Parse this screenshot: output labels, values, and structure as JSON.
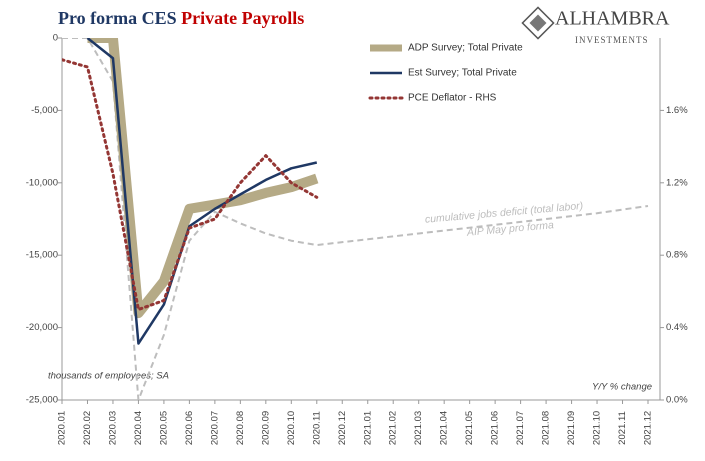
{
  "chart_data": {
    "type": "line",
    "title": {
      "part1": "Pro forma CES",
      "part2": "Private Payrolls"
    },
    "logo": {
      "name": "ALHAMBRA",
      "sub": "INVESTMENTS"
    },
    "y_note": "thousands of employees; SA",
    "y2_note": "Y/Y % change",
    "annotations": [
      "cumulative jobs deficit (total labor)",
      "AIP May pro forma"
    ],
    "categories": [
      "2020.01",
      "2020.02",
      "2020.03",
      "2020.04",
      "2020.05",
      "2020.06",
      "2020.07",
      "2020.08",
      "2020.09",
      "2020.10",
      "2020.11",
      "2020.12",
      "2021.01",
      "2021.02",
      "2021.03",
      "2021.04",
      "2021.05",
      "2021.06",
      "2021.07",
      "2021.08",
      "2021.09",
      "2021.10",
      "2021.11",
      "2021.12"
    ],
    "ylim": [
      -25000,
      0
    ],
    "yticks": [
      {
        "value": -25000,
        "label": "-25,000"
      },
      {
        "value": -20000,
        "label": "-20,000"
      },
      {
        "value": -15000,
        "label": "-15,000"
      },
      {
        "value": -10000,
        "label": "-10,000"
      },
      {
        "value": -5000,
        "label": "-5,000"
      },
      0
    ],
    "y2lim": [
      0,
      2.0
    ],
    "y2ticks": [
      {
        "value": 0,
        "label": "0.0%"
      },
      {
        "value": 0.4,
        "label": "0.4%"
      },
      {
        "value": 0.8,
        "label": "0.8%"
      },
      {
        "value": 1.2,
        "label": "1.2%"
      },
      {
        "value": 1.6,
        "label": "1.6%"
      }
    ],
    "series": [
      {
        "color": "#bdbdbd",
        "width": 2,
        "dash": "6,4",
        "values": [
          0,
          0,
          -3000,
          -25000,
          -20500,
          -14000,
          -12000,
          -12800,
          -13500,
          -14000,
          -14300,
          -14100,
          -13900,
          -13700,
          -13500,
          -13300,
          -13100,
          -12900,
          -12700,
          -12500,
          -12300,
          -12100,
          -11850,
          -11600
        ]
      },
      {
        "name": "ADP Survey; Total Private",
        "color": "#b5aa86",
        "width": 10,
        "dash": "",
        "values": [
          null,
          0,
          0,
          -19000,
          -16800,
          -11800,
          -11500,
          -11200,
          -10700,
          -10300,
          -9700,
          null,
          null,
          null,
          null,
          null,
          null,
          null,
          null,
          null,
          null,
          null,
          null,
          null
        ]
      },
      {
        "name": "Est Survey; Total Private",
        "color": "#1f3864",
        "width": 2.5,
        "dash": "",
        "values": [
          null,
          0,
          -1400,
          -21100,
          -18400,
          -13000,
          -11800,
          -10800,
          -9800,
          -9000,
          -8600,
          null,
          null,
          null,
          null,
          null,
          null,
          null,
          null,
          null,
          null,
          null,
          null,
          null
        ]
      },
      {
        "name": "PCE Deflator - RHS",
        "color": "#943634",
        "width": 3,
        "dash": "2,4",
        "axis": "y2",
        "values": [
          1.88,
          1.84,
          1.25,
          0.5,
          0.55,
          0.95,
          1.0,
          1.2,
          1.35,
          1.2,
          1.12,
          null,
          null,
          null,
          null,
          null,
          null,
          null,
          null,
          null,
          null,
          null,
          null,
          null
        ]
      }
    ]
  }
}
